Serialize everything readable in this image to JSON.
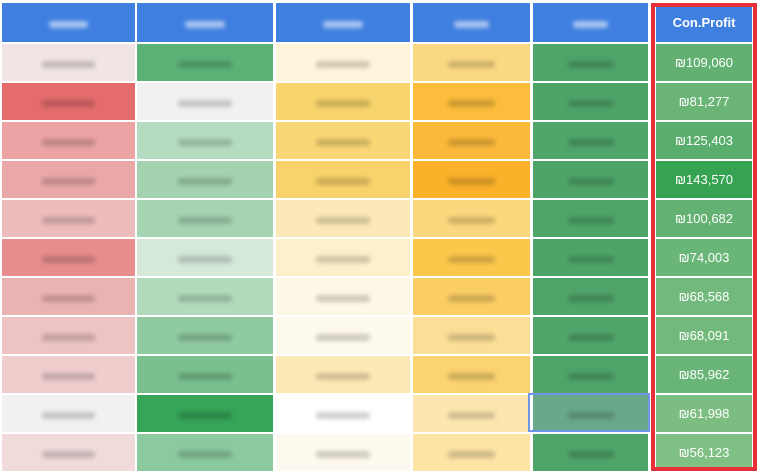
{
  "table": {
    "header": "Con.Profit",
    "rows": [
      "₪109,060",
      "₪81,277",
      "₪125,403",
      "₪143,570",
      "₪100,682",
      "₪74,003",
      "₪68,568",
      "₪68,091",
      "₪85,962",
      "₪61,998",
      "₪56,123"
    ]
  }
}
